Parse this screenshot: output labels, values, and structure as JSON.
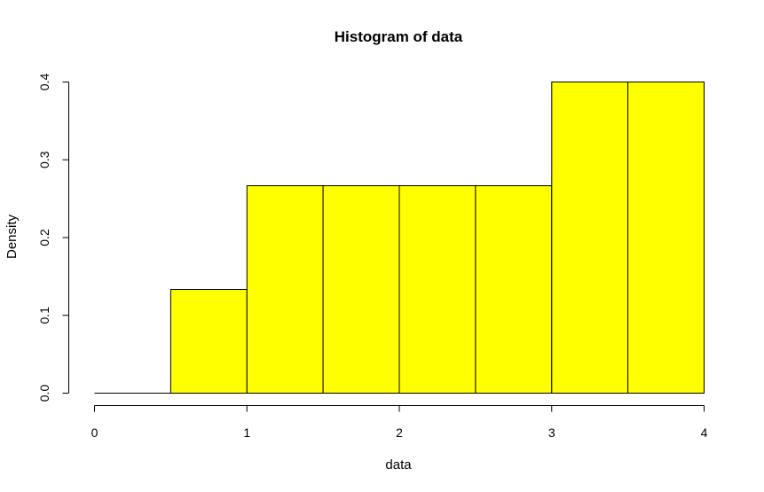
{
  "chart_data": {
    "type": "bar",
    "subtype": "histogram",
    "title": "Histogram of data",
    "xlabel": "data",
    "ylabel": "Density",
    "bin_edges": [
      0,
      0.5,
      1,
      1.5,
      2,
      2.5,
      3,
      3.5,
      4
    ],
    "values": [
      0,
      0.1333,
      0.2667,
      0.2667,
      0.2667,
      0.2667,
      0.4,
      0.4
    ],
    "xlim": [
      0,
      4
    ],
    "ylim": [
      0,
      0.4
    ],
    "x_ticks": [
      0,
      1,
      2,
      3,
      4
    ],
    "x_tick_labels": [
      "0",
      "1",
      "2",
      "3",
      "4"
    ],
    "y_ticks": [
      0,
      0.1,
      0.2,
      0.3,
      0.4
    ],
    "y_tick_labels": [
      "0.0",
      "0.1",
      "0.2",
      "0.3",
      "0.4"
    ],
    "bar_color": "#ffff00",
    "border_color": "#000000",
    "grid": false,
    "legend": "none"
  }
}
